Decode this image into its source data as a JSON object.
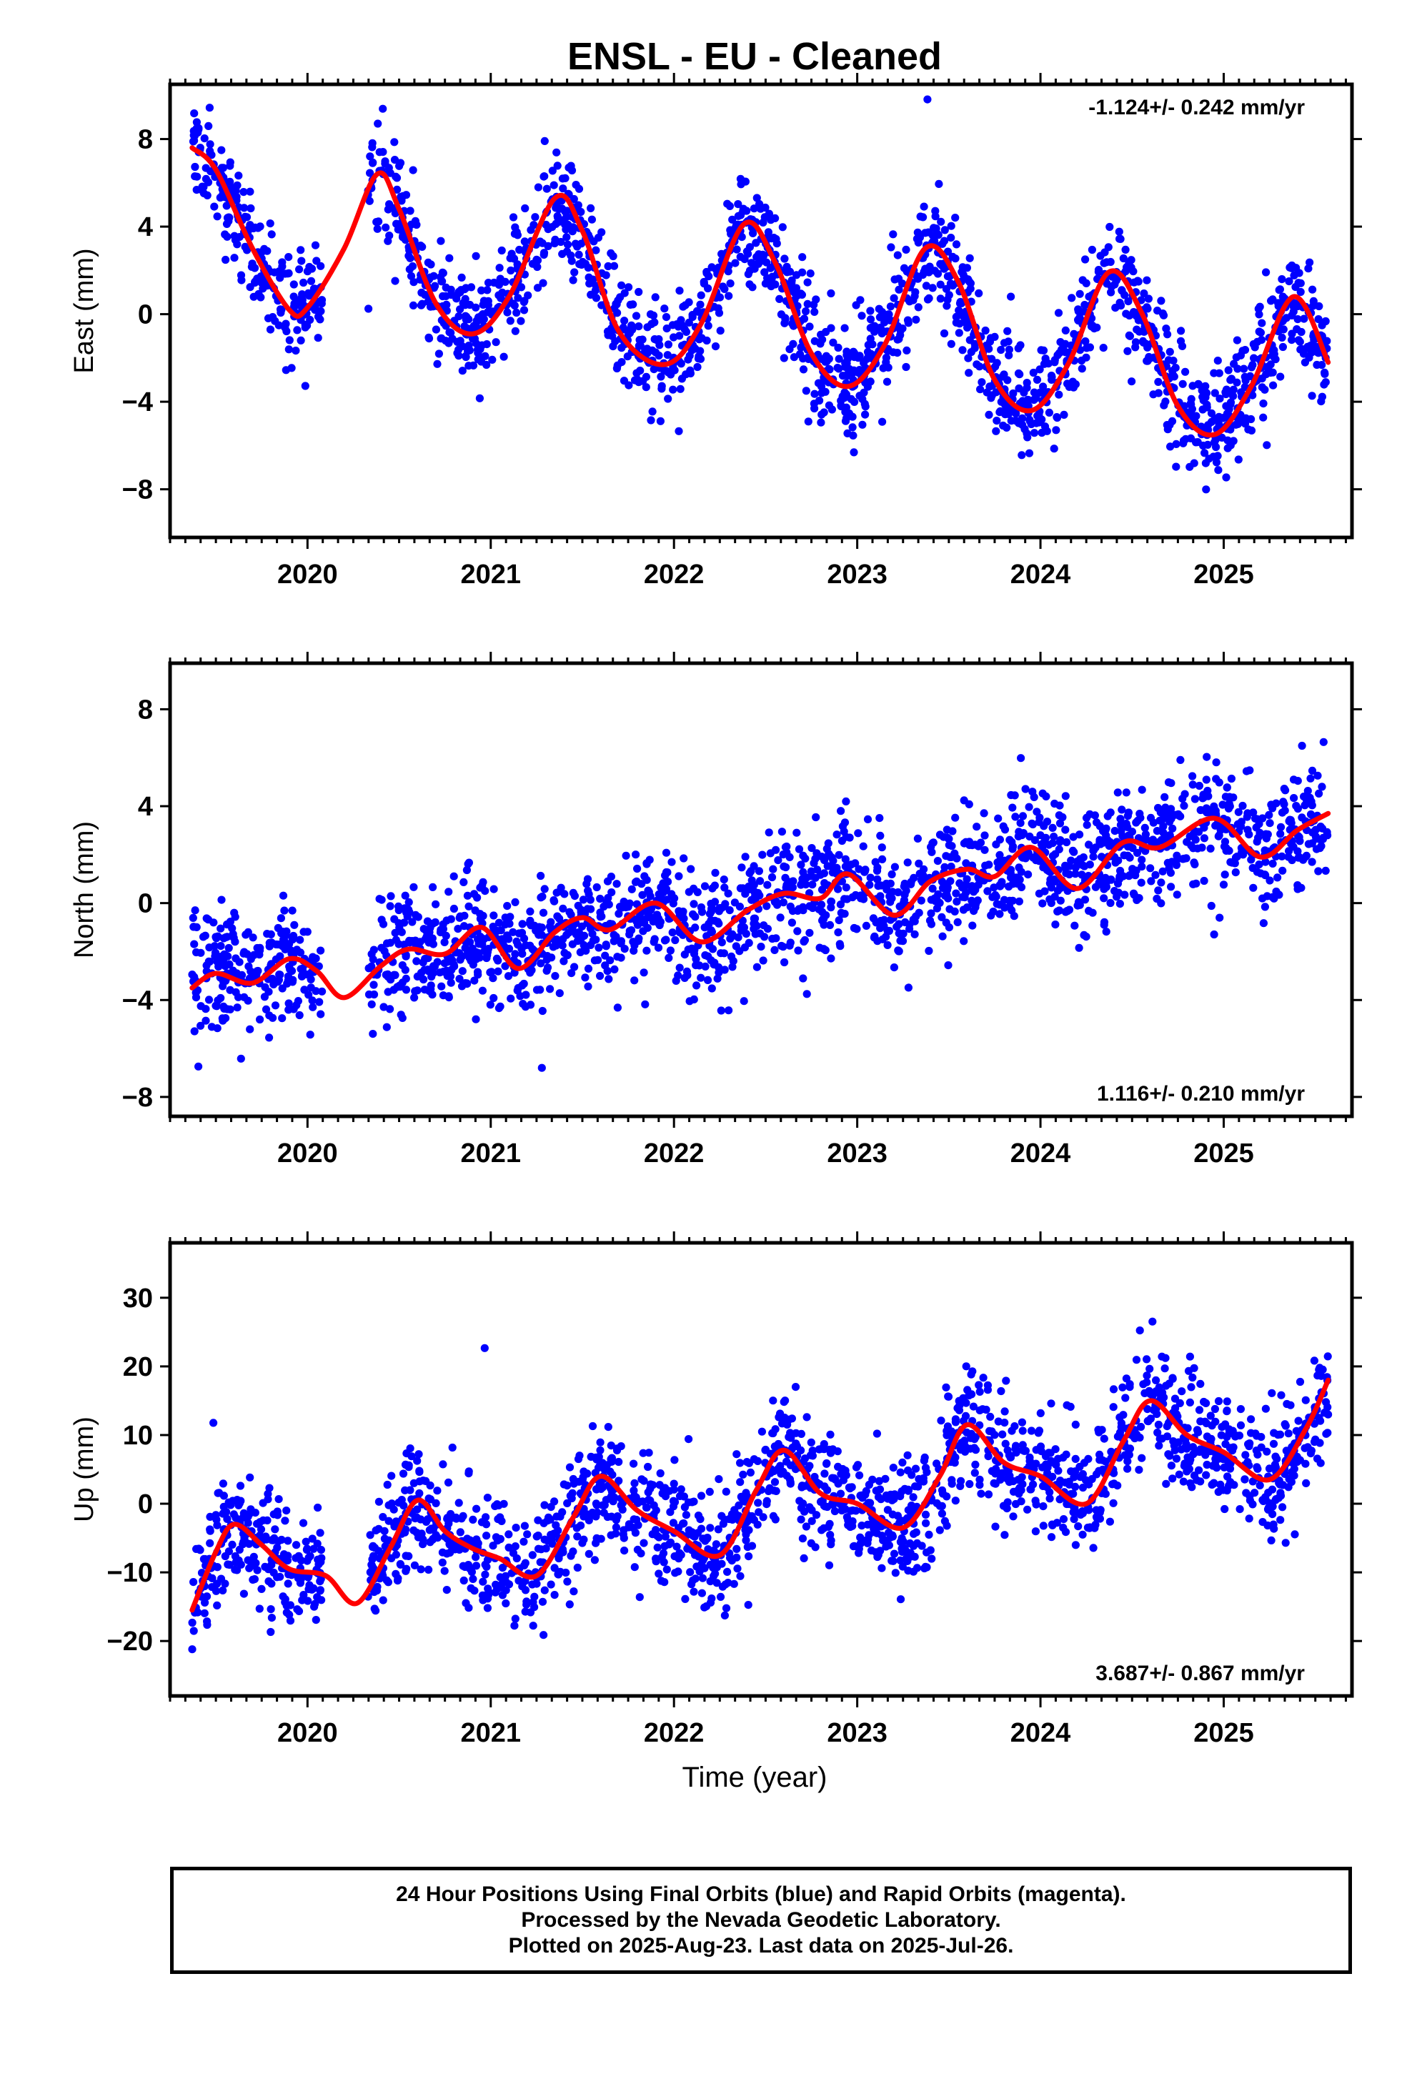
{
  "title": "ENSL  - EU - Cleaned",
  "xlabel": "Time (year)",
  "colors": {
    "data_points": "#0000ff",
    "fit_curve": "#ff0000",
    "axis": "#000000",
    "background": "#ffffff"
  },
  "caption": {
    "line1": "24 Hour Positions Using Final Orbits (blue) and Rapid Orbits (magenta).",
    "line2": "Processed by the Nevada Geodetic Laboratory.",
    "line3": "Plotted on 2025-Aug-23. Last data on 2025-Jul-26."
  },
  "chart_data": [
    {
      "type": "scatter",
      "name": "east",
      "title": "ENSL  - EU - Cleaned",
      "xlabel": "",
      "ylabel": "East (mm)",
      "xlim": [
        2019.25,
        2025.7
      ],
      "ylim": [
        -10.2,
        10.5
      ],
      "xticks": [
        2020,
        2021,
        2022,
        2023,
        2024,
        2025
      ],
      "yticks": [
        8,
        4,
        0,
        -4,
        -8
      ],
      "ytick_labels": [
        "8",
        "4",
        "0",
        "−4",
        "−8"
      ],
      "rate_label": "-1.124+/- 0.242 mm/yr",
      "rate_position": "top-right",
      "grid": false,
      "data_span": [
        2019.37,
        2025.57
      ],
      "gaps": [
        [
          2020.08,
          2020.33
        ]
      ],
      "fit_curve": [
        [
          2019.37,
          7.6
        ],
        [
          2019.5,
          6.6
        ],
        [
          2019.7,
          3.0
        ],
        [
          2019.9,
          0.2
        ],
        [
          2020.0,
          0.3
        ],
        [
          2020.2,
          3.0
        ],
        [
          2020.38,
          6.4
        ],
        [
          2020.5,
          4.8
        ],
        [
          2020.7,
          0.5
        ],
        [
          2020.9,
          -0.9
        ],
        [
          2021.1,
          0.8
        ],
        [
          2021.35,
          5.3
        ],
        [
          2021.5,
          3.8
        ],
        [
          2021.7,
          -0.8
        ],
        [
          2021.95,
          -2.3
        ],
        [
          2022.15,
          -0.4
        ],
        [
          2022.38,
          4.1
        ],
        [
          2022.55,
          2.4
        ],
        [
          2022.75,
          -1.8
        ],
        [
          2022.95,
          -3.3
        ],
        [
          2023.15,
          -1.4
        ],
        [
          2023.37,
          3.0
        ],
        [
          2023.55,
          1.5
        ],
        [
          2023.75,
          -3.0
        ],
        [
          2023.95,
          -4.4
        ],
        [
          2024.15,
          -2.3
        ],
        [
          2024.37,
          1.9
        ],
        [
          2024.55,
          0.1
        ],
        [
          2024.75,
          -4.2
        ],
        [
          2024.95,
          -5.5
        ],
        [
          2025.15,
          -3.3
        ],
        [
          2025.38,
          0.8
        ],
        [
          2025.57,
          -2.2
        ]
      ],
      "series": [
        {
          "name": "Final Orbits",
          "n_points": 2050,
          "noise_mm": 1.3
        }
      ]
    },
    {
      "type": "scatter",
      "name": "north",
      "title": "",
      "xlabel": "",
      "ylabel": "North (mm)",
      "xlim": [
        2019.25,
        2025.7
      ],
      "ylim": [
        -8.8,
        9.9
      ],
      "xticks": [
        2020,
        2021,
        2022,
        2023,
        2024,
        2025
      ],
      "yticks": [
        8,
        4,
        0,
        -4,
        -8
      ],
      "ytick_labels": [
        "8",
        "4",
        "0",
        "−4",
        "−8"
      ],
      "rate_label": "1.116+/- 0.210 mm/yr",
      "rate_position": "bottom-right",
      "grid": false,
      "data_span": [
        2019.37,
        2025.57
      ],
      "gaps": [
        [
          2020.08,
          2020.33
        ]
      ],
      "fit_curve": [
        [
          2019.37,
          -3.5
        ],
        [
          2019.5,
          -2.9
        ],
        [
          2019.7,
          -3.3
        ],
        [
          2019.9,
          -2.3
        ],
        [
          2020.05,
          -2.8
        ],
        [
          2020.2,
          -3.9
        ],
        [
          2020.4,
          -2.6
        ],
        [
          2020.55,
          -1.9
        ],
        [
          2020.75,
          -2.1
        ],
        [
          2020.95,
          -1.0
        ],
        [
          2021.15,
          -2.7
        ],
        [
          2021.35,
          -1.2
        ],
        [
          2021.5,
          -0.6
        ],
        [
          2021.65,
          -1.1
        ],
        [
          2021.9,
          0.0
        ],
        [
          2022.15,
          -1.6
        ],
        [
          2022.4,
          -0.3
        ],
        [
          2022.6,
          0.4
        ],
        [
          2022.8,
          0.2
        ],
        [
          2022.95,
          1.2
        ],
        [
          2023.2,
          -0.5
        ],
        [
          2023.4,
          0.9
        ],
        [
          2023.6,
          1.4
        ],
        [
          2023.75,
          1.1
        ],
        [
          2023.95,
          2.3
        ],
        [
          2024.2,
          0.6
        ],
        [
          2024.45,
          2.5
        ],
        [
          2024.65,
          2.3
        ],
        [
          2024.95,
          3.5
        ],
        [
          2025.2,
          1.9
        ],
        [
          2025.4,
          3.0
        ],
        [
          2025.57,
          3.7
        ]
      ],
      "series": [
        {
          "name": "Final Orbits",
          "n_points": 2050,
          "noise_mm": 1.2
        }
      ]
    },
    {
      "type": "scatter",
      "name": "up",
      "title": "",
      "xlabel": "Time (year)",
      "ylabel": "Up (mm)",
      "xlim": [
        2019.25,
        2025.7
      ],
      "ylim": [
        -28,
        38
      ],
      "xticks": [
        2020,
        2021,
        2022,
        2023,
        2024,
        2025
      ],
      "yticks": [
        30,
        20,
        10,
        0,
        -10,
        -20
      ],
      "ytick_labels": [
        "30",
        "20",
        "10",
        "0",
        "−10",
        "−20"
      ],
      "rate_label": "3.687+/- 0.867 mm/yr",
      "rate_position": "bottom-right",
      "grid": false,
      "data_span": [
        2019.37,
        2025.57
      ],
      "gaps": [
        [
          2020.08,
          2020.33
        ]
      ],
      "fit_curve": [
        [
          2019.37,
          -15.5
        ],
        [
          2019.5,
          -7.0
        ],
        [
          2019.6,
          -3.0
        ],
        [
          2019.75,
          -6.0
        ],
        [
          2019.9,
          -9.5
        ],
        [
          2020.1,
          -10.5
        ],
        [
          2020.27,
          -14.5
        ],
        [
          2020.45,
          -6.5
        ],
        [
          2020.6,
          0.5
        ],
        [
          2020.75,
          -4.0
        ],
        [
          2020.9,
          -6.5
        ],
        [
          2021.05,
          -8.0
        ],
        [
          2021.25,
          -10.5
        ],
        [
          2021.45,
          -2.0
        ],
        [
          2021.6,
          4.0
        ],
        [
          2021.8,
          -1.0
        ],
        [
          2022.0,
          -4.0
        ],
        [
          2022.25,
          -7.5
        ],
        [
          2022.45,
          2.0
        ],
        [
          2022.6,
          7.8
        ],
        [
          2022.8,
          1.5
        ],
        [
          2023.0,
          0.0
        ],
        [
          2023.25,
          -3.5
        ],
        [
          2023.45,
          4.0
        ],
        [
          2023.6,
          11.5
        ],
        [
          2023.8,
          6.0
        ],
        [
          2024.0,
          4.0
        ],
        [
          2024.25,
          0.0
        ],
        [
          2024.45,
          9.0
        ],
        [
          2024.6,
          15.0
        ],
        [
          2024.8,
          10.0
        ],
        [
          2025.0,
          7.5
        ],
        [
          2025.25,
          3.5
        ],
        [
          2025.45,
          11.0
        ],
        [
          2025.57,
          18.0
        ]
      ],
      "series": [
        {
          "name": "Final Orbits",
          "n_points": 2050,
          "noise_mm": 4.2
        }
      ]
    }
  ]
}
